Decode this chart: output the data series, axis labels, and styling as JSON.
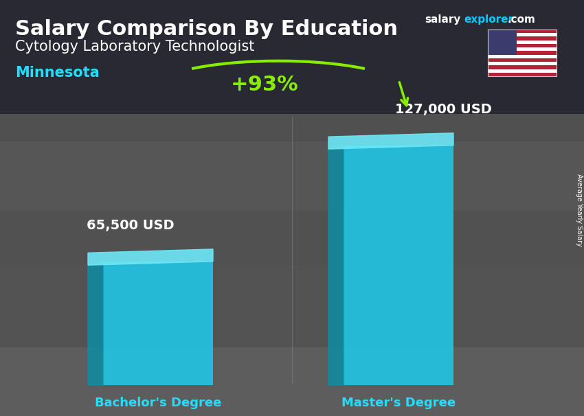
{
  "title_main": "Salary Comparison By Education",
  "title_sub": "Cytology Laboratory Technologist",
  "title_location": "Minnesota",
  "brand_white": "salary",
  "brand_cyan": "explorer",
  "brand_end": ".com",
  "categories": [
    "Bachelor's Degree",
    "Master's Degree"
  ],
  "values": [
    65500,
    127000
  ],
  "value_labels": [
    "65,500 USD",
    "127,000 USD"
  ],
  "pct_change": "+93%",
  "bar_face_color": "#1ec8e8",
  "bar_side_color": "#0a8fa8",
  "bar_top_color": "#6de8f8",
  "bg_dark": "#404040",
  "bg_overlay": "#2a2a2a",
  "text_white": "#ffffff",
  "text_cyan": "#00d4ff",
  "text_green": "#88ee00",
  "side_label": "Average Yearly Salary",
  "flag_colors_red": "#B22234",
  "flag_colors_blue": "#3C3B6E"
}
